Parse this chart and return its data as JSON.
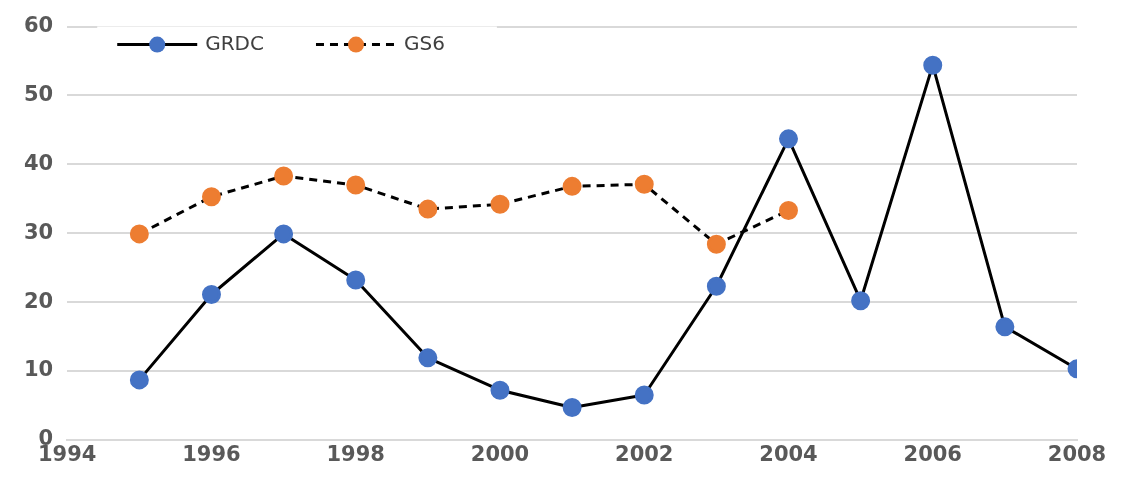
{
  "chart_data": {
    "type": "line",
    "x": [
      1995,
      1996,
      1997,
      1998,
      1999,
      2000,
      2001,
      2002,
      2003,
      2004,
      2005,
      2006,
      2007,
      2008
    ],
    "series": [
      {
        "name": "GRDC",
        "color": "#4472c4",
        "values": [
          8.7,
          21.1,
          29.9,
          23.2,
          11.9,
          7.2,
          4.7,
          6.5,
          22.3,
          43.7,
          20.2,
          54.4,
          16.4,
          10.3
        ],
        "line_style": "solid"
      },
      {
        "name": "GS6",
        "color": "#ed7d31",
        "values": [
          29.9,
          35.3,
          38.3,
          37.0,
          33.5,
          34.2,
          36.8,
          37.1,
          28.4,
          33.3,
          null,
          null,
          null,
          null
        ],
        "line_style": "dashed"
      }
    ],
    "xlim": [
      1994,
      2008
    ],
    "xticks": [
      1994,
      1996,
      1998,
      2000,
      2002,
      2004,
      2006,
      2008
    ],
    "ylim": [
      0,
      60
    ],
    "yticks": [
      0,
      10,
      20,
      30,
      40,
      50,
      60
    ],
    "grid": "y",
    "legend": "top left",
    "marker": "circle"
  }
}
